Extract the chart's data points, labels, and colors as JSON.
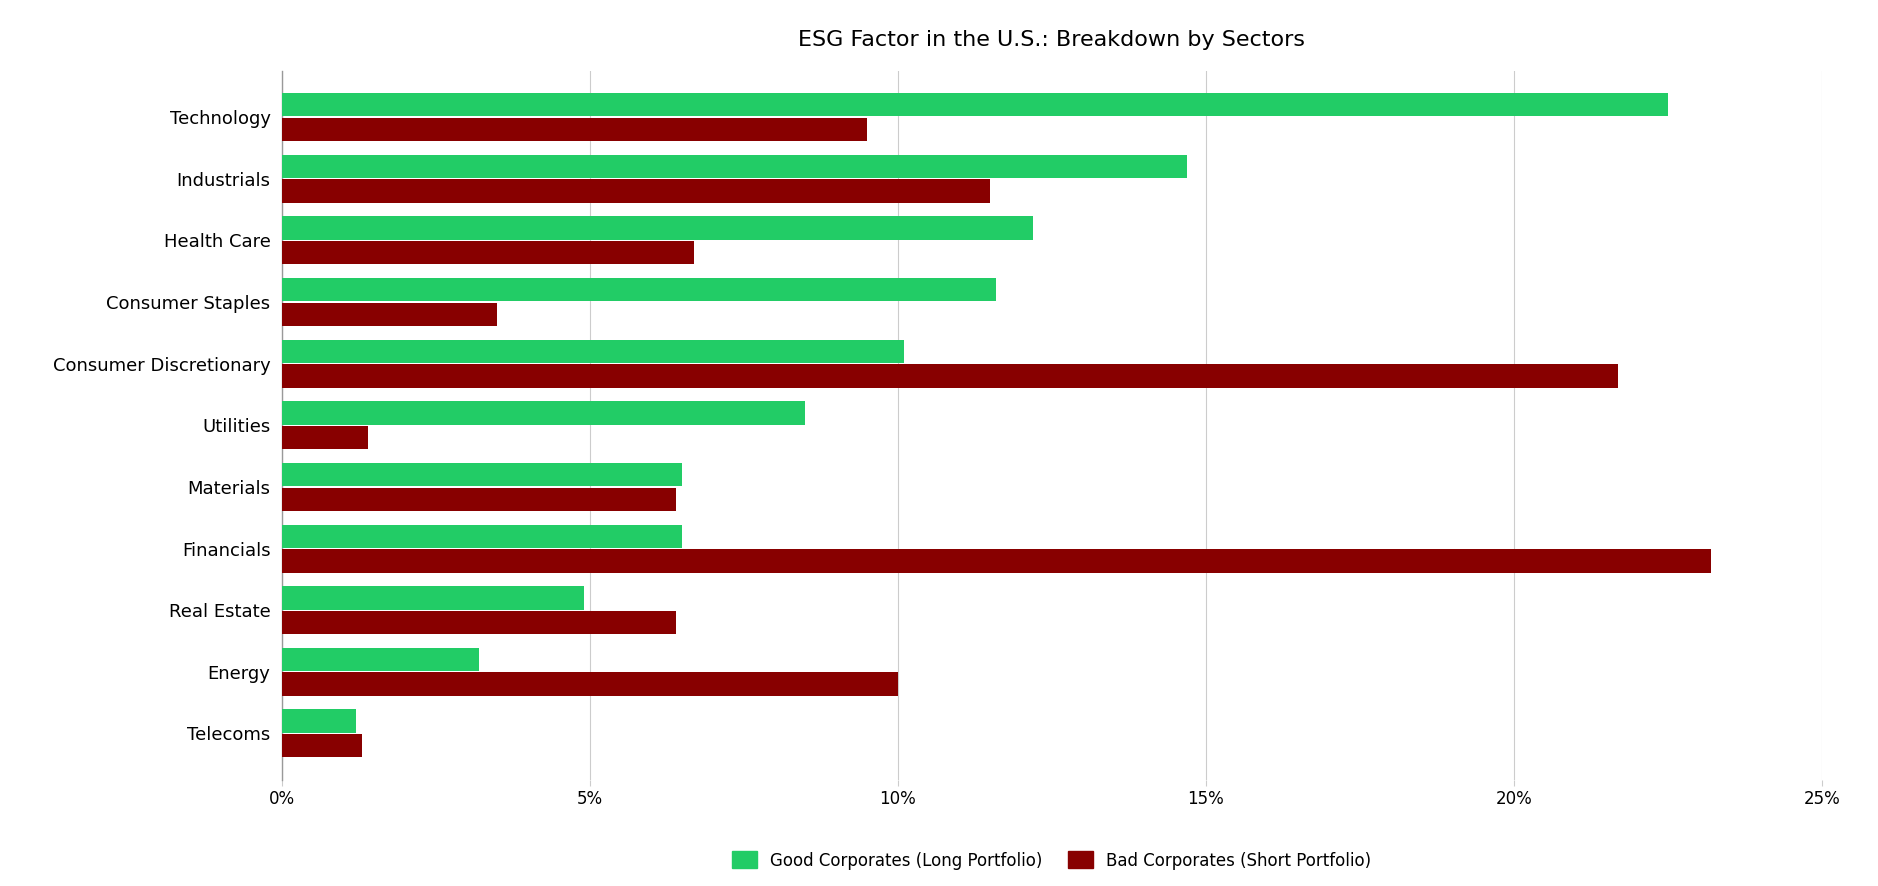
{
  "title": "ESG Factor in the U.S.: Breakdown by Sectors",
  "categories": [
    "Technology",
    "Industrials",
    "Health Care",
    "Consumer Staples",
    "Consumer Discretionary",
    "Utilities",
    "Materials",
    "Financials",
    "Real Estate",
    "Energy",
    "Telecoms"
  ],
  "good_values": [
    0.225,
    0.147,
    0.122,
    0.116,
    0.101,
    0.085,
    0.065,
    0.065,
    0.049,
    0.032,
    0.012
  ],
  "bad_values": [
    0.095,
    0.115,
    0.067,
    0.035,
    0.217,
    0.014,
    0.064,
    0.232,
    0.064,
    0.1,
    0.013
  ],
  "good_color": "#22CC66",
  "bad_color": "#880000",
  "good_label": "Good Corporates (Long Portfolio)",
  "bad_label": "Bad Corporates (Short Portfolio)",
  "xlim": [
    0,
    0.25
  ],
  "xticks": [
    0.0,
    0.05,
    0.1,
    0.15,
    0.2,
    0.25
  ],
  "xtick_labels": [
    "0%",
    "5%",
    "10%",
    "15%",
    "20%",
    "25%"
  ],
  "background_color": "#ffffff",
  "bar_height": 0.38,
  "bar_gap": 0.02,
  "figsize": [
    18.78,
    8.86
  ],
  "dpi": 100,
  "title_fontsize": 16,
  "label_fontsize": 13,
  "tick_fontsize": 12,
  "legend_fontsize": 12
}
